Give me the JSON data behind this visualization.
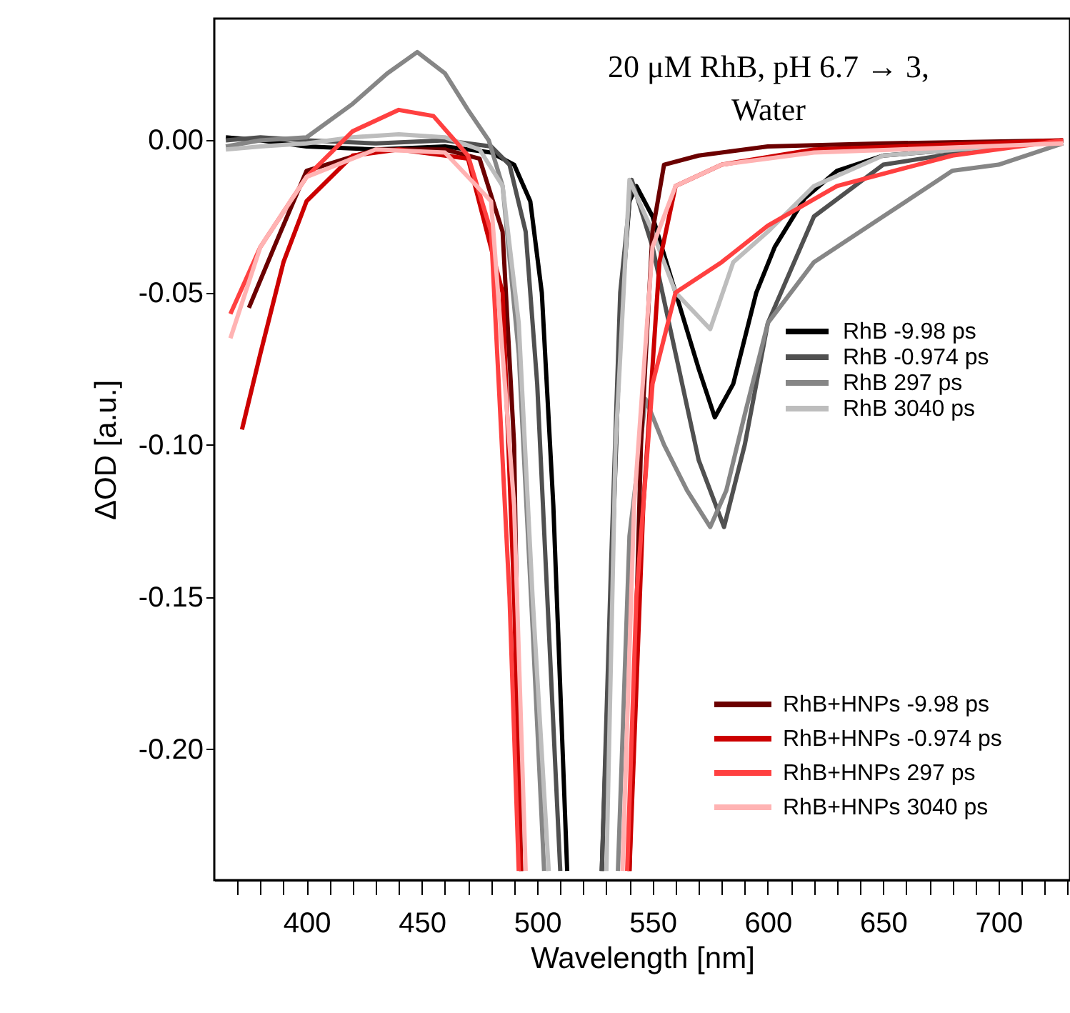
{
  "chart_data": {
    "type": "line",
    "title": "20 μM RhB, pH 6.7 → 3, Water",
    "xlabel": "Wavelength [nm]",
    "ylabel": "ΔOD [a.u.]",
    "xlim": [
      360,
      731
    ],
    "ylim": [
      -0.243,
      0.04
    ],
    "xticks": [
      {
        "value": 370,
        "label": null
      },
      {
        "value": 380,
        "label": null
      },
      {
        "value": 390,
        "label": null
      },
      400,
      {
        "value": 410,
        "label": null
      },
      {
        "value": 420,
        "label": null
      },
      {
        "value": 430,
        "label": null
      },
      {
        "value": 440,
        "label": null
      },
      450,
      {
        "value": 460,
        "label": null
      },
      {
        "value": 470,
        "label": null
      },
      {
        "value": 480,
        "label": null
      },
      {
        "value": 490,
        "label": null
      },
      500,
      {
        "value": 510,
        "label": null
      },
      {
        "value": 520,
        "label": null
      },
      {
        "value": 530,
        "label": null
      },
      {
        "value": 540,
        "label": null
      },
      550,
      {
        "value": 560,
        "label": null
      },
      {
        "value": 570,
        "label": null
      },
      {
        "value": 580,
        "label": null
      },
      {
        "value": 590,
        "label": null
      },
      600,
      {
        "value": 610,
        "label": null
      },
      {
        "value": 620,
        "label": null
      },
      {
        "value": 630,
        "label": null
      },
      {
        "value": 640,
        "label": null
      },
      650,
      {
        "value": 660,
        "label": null
      },
      {
        "value": 670,
        "label": null
      },
      {
        "value": 680,
        "label": null
      },
      {
        "value": 690,
        "label": null
      },
      700,
      {
        "value": 710,
        "label": null
      },
      {
        "value": 720,
        "label": null
      },
      {
        "value": 730,
        "label": null
      }
    ],
    "yticks": [
      {
        "value": 0,
        "label": "0.00"
      },
      {
        "value": -0.05,
        "label": "-0.05"
      },
      {
        "value": -0.1,
        "label": "-0.10"
      },
      {
        "value": -0.15,
        "label": "-0.15"
      },
      {
        "value": -0.2,
        "label": "-0.20"
      }
    ],
    "grid": false,
    "legend": "right",
    "line_style": "solid",
    "marker": "none",
    "series": [
      {
        "name": "RhB -9.98 ps",
        "color": "#000000",
        "x": [
          365,
          380,
          400,
          430,
          460,
          480,
          490,
          497,
          502,
          507,
          511,
          513,
          520,
          528,
          532,
          536,
          540,
          543,
          550,
          560,
          570,
          577,
          585,
          595,
          603,
          616,
          630,
          650,
          700,
          728
        ],
        "values": [
          0.001,
          0.0,
          -0.002,
          -0.003,
          -0.002,
          -0.004,
          -0.008,
          -0.02,
          -0.05,
          -0.12,
          -0.2,
          -0.24,
          null,
          -0.24,
          -0.15,
          -0.06,
          -0.02,
          -0.015,
          -0.025,
          -0.05,
          -0.075,
          -0.091,
          -0.08,
          -0.05,
          -0.035,
          -0.019,
          -0.01,
          -0.005,
          -0.002,
          0.0
        ]
      },
      {
        "name": "RhB -0.974 ps",
        "color": "#505050",
        "x": [
          365,
          380,
          400,
          430,
          460,
          480,
          488,
          495,
          500,
          505,
          510,
          520,
          528,
          532,
          536,
          541,
          550,
          560,
          570,
          581,
          590,
          600,
          620,
          650,
          700,
          728
        ],
        "values": [
          0.0,
          0.001,
          0.0,
          -0.001,
          0.0,
          -0.002,
          -0.008,
          -0.03,
          -0.08,
          -0.16,
          -0.24,
          null,
          -0.24,
          -0.14,
          -0.05,
          -0.013,
          -0.035,
          -0.07,
          -0.105,
          -0.127,
          -0.1,
          -0.06,
          -0.025,
          -0.008,
          -0.002,
          0.0
        ]
      },
      {
        "name": "RhB 297 ps",
        "color": "#868686",
        "x": [
          365,
          380,
          400,
          420,
          435,
          448,
          460,
          470,
          479,
          485,
          492,
          498,
          503,
          520,
          535,
          540,
          547,
          555,
          565,
          575,
          582,
          590,
          600,
          620,
          650,
          680,
          700,
          728
        ],
        "values": [
          -0.002,
          0.0,
          0.001,
          0.012,
          0.022,
          0.029,
          0.022,
          0.01,
          0.0,
          -0.015,
          -0.07,
          -0.16,
          -0.24,
          null,
          -0.24,
          -0.13,
          -0.085,
          -0.1,
          -0.115,
          -0.127,
          -0.115,
          -0.09,
          -0.06,
          -0.04,
          -0.025,
          -0.01,
          -0.008,
          -0.001
        ]
      },
      {
        "name": "RhB 3040 ps",
        "color": "#bdbdbd",
        "x": [
          365,
          380,
          400,
          420,
          440,
          460,
          475,
          485,
          492,
          498,
          505,
          520,
          530,
          534,
          540,
          550,
          560,
          575,
          585,
          600,
          620,
          650,
          700,
          728
        ],
        "values": [
          -0.003,
          -0.002,
          -0.001,
          0.001,
          0.002,
          0.001,
          -0.003,
          -0.015,
          -0.06,
          -0.15,
          -0.24,
          null,
          -0.24,
          -0.1,
          -0.013,
          -0.03,
          -0.05,
          -0.062,
          -0.04,
          -0.03,
          -0.015,
          -0.005,
          -0.002,
          0.0
        ]
      },
      {
        "name": "RhB+HNPs -9.98 ps",
        "color": "#6b0000",
        "x": [
          375,
          386,
          400,
          430,
          460,
          475,
          485,
          490,
          493,
          520,
          540,
          545,
          550,
          555,
          570,
          600,
          650,
          728
        ],
        "values": [
          -0.055,
          -0.035,
          -0.01,
          -0.003,
          -0.003,
          -0.006,
          -0.03,
          -0.1,
          -0.24,
          null,
          -0.24,
          -0.1,
          -0.03,
          -0.008,
          -0.005,
          -0.002,
          -0.001,
          0.0
        ]
      },
      {
        "name": "RhB+HNPs -0.974 ps",
        "color": "#cc0000",
        "x": [
          372,
          380,
          390,
          400,
          420,
          440,
          470,
          485,
          490,
          493,
          520,
          540,
          546,
          553,
          560,
          580,
          620,
          728
        ],
        "values": [
          -0.095,
          -0.07,
          -0.04,
          -0.02,
          -0.005,
          -0.003,
          -0.006,
          -0.05,
          -0.15,
          -0.24,
          null,
          -0.24,
          -0.12,
          -0.04,
          -0.015,
          -0.008,
          -0.003,
          0.0
        ]
      },
      {
        "name": "RhB+HNPs 297 ps",
        "color": "#ff4040",
        "x": [
          367,
          380,
          400,
          420,
          440,
          455,
          470,
          480,
          488,
          492,
          520,
          539,
          543,
          550,
          560,
          580,
          600,
          630,
          680,
          728
        ],
        "values": [
          -0.057,
          -0.035,
          -0.012,
          0.003,
          0.01,
          0.008,
          -0.005,
          -0.03,
          -0.15,
          -0.24,
          null,
          -0.24,
          -0.15,
          -0.08,
          -0.05,
          -0.04,
          -0.028,
          -0.015,
          -0.005,
          0.0
        ]
      },
      {
        "name": "RhB+HNPs 3040 ps",
        "color": "#ffb3b3",
        "x": [
          367,
          380,
          400,
          430,
          460,
          480,
          490,
          495,
          520,
          537,
          542,
          550,
          560,
          580,
          620,
          728
        ],
        "values": [
          -0.065,
          -0.035,
          -0.012,
          -0.003,
          -0.004,
          -0.02,
          -0.12,
          -0.24,
          null,
          -0.24,
          -0.12,
          -0.035,
          -0.015,
          -0.008,
          -0.004,
          -0.001
        ]
      }
    ]
  }
}
